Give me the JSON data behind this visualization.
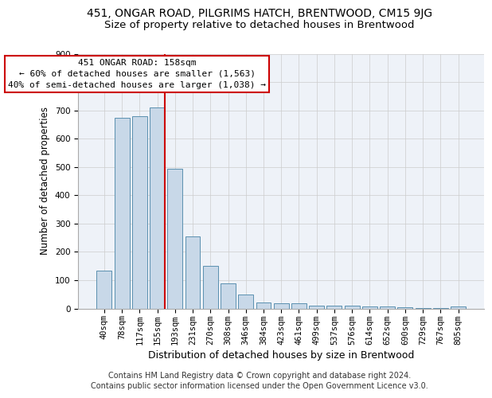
{
  "title": "451, ONGAR ROAD, PILGRIMS HATCH, BRENTWOOD, CM15 9JG",
  "subtitle": "Size of property relative to detached houses in Brentwood",
  "xlabel": "Distribution of detached houses by size in Brentwood",
  "ylabel": "Number of detached properties",
  "footer_line1": "Contains HM Land Registry data © Crown copyright and database right 2024.",
  "footer_line2": "Contains public sector information licensed under the Open Government Licence v3.0.",
  "categories": [
    "40sqm",
    "78sqm",
    "117sqm",
    "155sqm",
    "193sqm",
    "231sqm",
    "270sqm",
    "308sqm",
    "346sqm",
    "384sqm",
    "423sqm",
    "461sqm",
    "499sqm",
    "537sqm",
    "576sqm",
    "614sqm",
    "652sqm",
    "690sqm",
    "729sqm",
    "767sqm",
    "805sqm"
  ],
  "values": [
    135,
    675,
    680,
    710,
    495,
    255,
    150,
    90,
    50,
    22,
    17,
    17,
    10,
    10,
    10,
    7,
    7,
    5,
    2,
    2,
    8
  ],
  "bar_color": "#c8d8e8",
  "bar_edge_color": "#5b90b0",
  "bar_edge_width": 0.7,
  "grid_color": "#cccccc",
  "background_color": "#eef2f8",
  "ylim": [
    0,
    900
  ],
  "yticks": [
    0,
    100,
    200,
    300,
    400,
    500,
    600,
    700,
    800,
    900
  ],
  "property_label": "451 ONGAR ROAD: 158sqm",
  "annotation_line1": "← 60% of detached houses are smaller (1,563)",
  "annotation_line2": "40% of semi-detached houses are larger (1,038) →",
  "red_line_color": "#cc0000",
  "annotation_box_color": "#cc0000",
  "title_fontsize": 10,
  "subtitle_fontsize": 9.5,
  "xlabel_fontsize": 9,
  "ylabel_fontsize": 8.5,
  "tick_fontsize": 7.5,
  "annotation_fontsize": 8,
  "footer_fontsize": 7
}
